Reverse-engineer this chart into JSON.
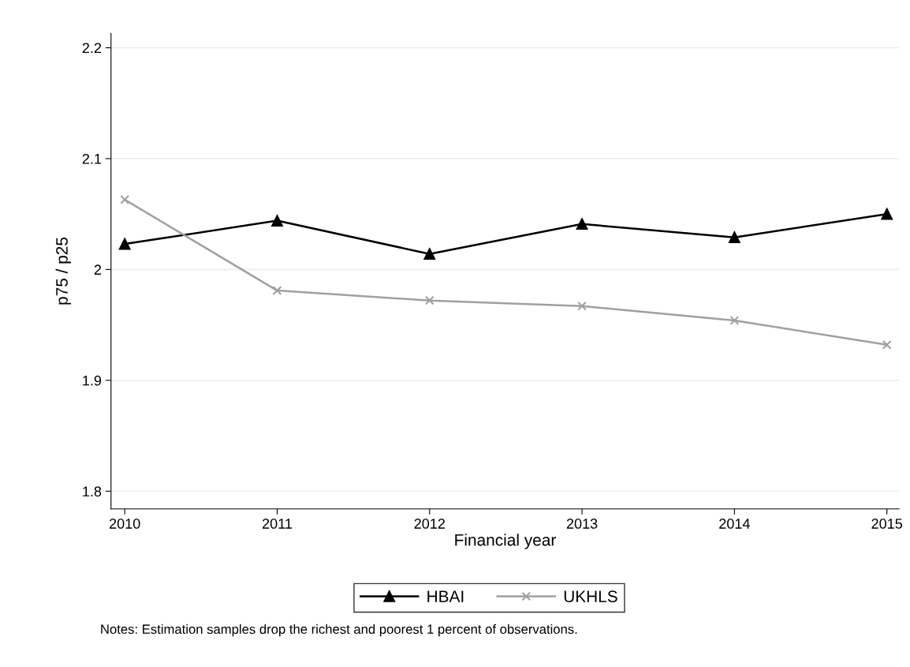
{
  "chart_data": {
    "type": "line",
    "xlabel": "Financial year",
    "ylabel": "p75 / p25",
    "x": [
      2010,
      2011,
      2012,
      2013,
      2014,
      2015
    ],
    "series": [
      {
        "name": "HBAI",
        "color": "#000000",
        "marker": "triangle",
        "values": [
          2.023,
          2.044,
          2.014,
          2.041,
          2.029,
          2.05
        ]
      },
      {
        "name": "UKHLS",
        "color": "#a0a0a0",
        "marker": "cross",
        "values": [
          2.063,
          1.981,
          1.972,
          1.967,
          1.954,
          1.932
        ]
      }
    ],
    "xlim": [
      2009.91,
      2015.08
    ],
    "xticks": [
      2010,
      2011,
      2012,
      2013,
      2014,
      2015
    ],
    "ylim": [
      1.784,
      2.213
    ],
    "yticks": [
      1.8,
      1.9,
      2,
      2.1,
      2.2
    ],
    "grid": "y",
    "legend": "bottom",
    "line_style": "solid",
    "annotations": [
      "Notes: Estimation samples drop the richest and poorest 1 percent of observations."
    ]
  }
}
